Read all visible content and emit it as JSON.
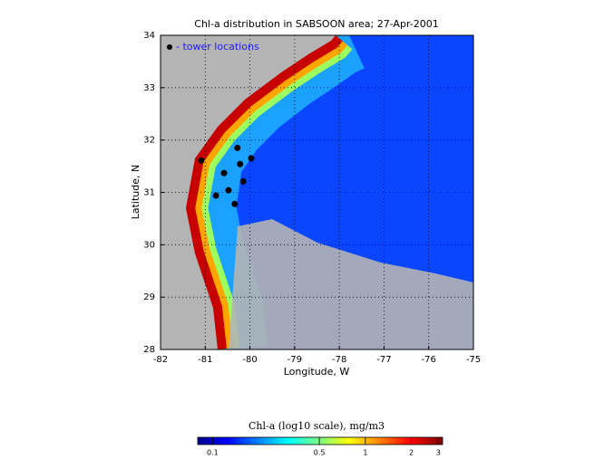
{
  "chart_data": {
    "type": "map",
    "title": "Chl-a distribution in SABSOON area; 27-Apr-2001",
    "xlabel": "Longitude, W",
    "ylabel": "Latitude, N",
    "xlim": [
      -82,
      -75
    ],
    "ylim": [
      28,
      34
    ],
    "xticks": [
      -82,
      -81,
      -80,
      -79,
      -78,
      -77,
      -76,
      -75
    ],
    "yticks": [
      28,
      29,
      30,
      31,
      32,
      33,
      34
    ],
    "grid": true,
    "series": [
      {
        "name": "- tower locations",
        "color": "#000000",
        "x": [
          -81.09,
          -80.28,
          -79.97,
          -80.22,
          -80.58,
          -80.15,
          -80.48,
          -80.76,
          -80.34
        ],
        "values": [
          31.61,
          31.85,
          31.65,
          31.54,
          31.37,
          31.21,
          31.04,
          30.94,
          30.78
        ]
      }
    ],
    "colorbar": {
      "title": "Chl-a (log10 scale), mg/m3",
      "log": true,
      "lim": [
        0.08,
        3.2
      ],
      "ticks": [
        0.1,
        0.5,
        1,
        2,
        3
      ]
    }
  }
}
